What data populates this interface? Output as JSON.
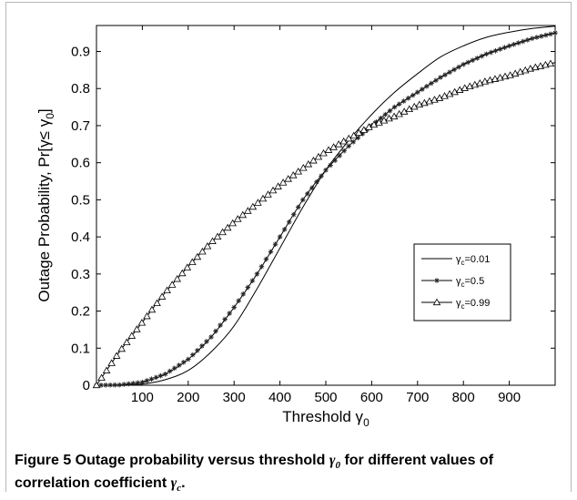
{
  "chart_data": {
    "type": "line",
    "xlabel": "Threshold γ",
    "xlabel_sub": "0",
    "ylabel": "Outage Probability, Pr[γ≤ γ",
    "ylabel_sub": "0",
    "ylabel_end": "]",
    "xlim": [
      0,
      1000
    ],
    "ylim": [
      0,
      0.97
    ],
    "xticks": [
      100,
      200,
      300,
      400,
      500,
      600,
      700,
      800,
      900
    ],
    "xtick_labels": [
      "100",
      "200",
      "300",
      "400",
      "500",
      "600",
      "700",
      "800",
      "900"
    ],
    "yticks": [
      0,
      0.1,
      0.2,
      0.3,
      0.4,
      0.5,
      0.6,
      0.7,
      0.8,
      0.9
    ],
    "ytick_labels": [
      "0",
      "0.1",
      "0.2",
      "0.3",
      "0.4",
      "0.5",
      "0.6",
      "0.7",
      "0.8",
      "0.9"
    ],
    "grid": false,
    "legend_position": "right",
    "series": [
      {
        "name": "γc=0.01",
        "label_base": "γ",
        "label_sub": "c",
        "label_rest": "=0.01",
        "marker": "none",
        "x": [
          0,
          50,
          100,
          150,
          200,
          250,
          300,
          350,
          400,
          450,
          500,
          550,
          600,
          650,
          700,
          750,
          800,
          850,
          900,
          950,
          1000
        ],
        "y": [
          0,
          0.0,
          0.003,
          0.015,
          0.04,
          0.09,
          0.16,
          0.26,
          0.37,
          0.48,
          0.58,
          0.66,
          0.73,
          0.79,
          0.84,
          0.885,
          0.915,
          0.938,
          0.952,
          0.962,
          0.968
        ]
      },
      {
        "name": "γc=0.5",
        "label_base": "γ",
        "label_sub": "c",
        "label_rest": "=0.5",
        "marker": "star",
        "x": [
          0,
          50,
          100,
          150,
          200,
          250,
          300,
          350,
          400,
          450,
          500,
          550,
          600,
          650,
          700,
          750,
          800,
          850,
          900,
          950,
          1000
        ],
        "y": [
          0,
          0.001,
          0.008,
          0.03,
          0.07,
          0.13,
          0.21,
          0.3,
          0.4,
          0.5,
          0.58,
          0.645,
          0.7,
          0.75,
          0.79,
          0.83,
          0.865,
          0.893,
          0.915,
          0.935,
          0.95
        ]
      },
      {
        "name": "γc=0.99",
        "label_base": "γ",
        "label_sub": "c",
        "label_rest": "=0.99",
        "marker": "triangle",
        "x": [
          0,
          50,
          100,
          150,
          200,
          250,
          300,
          350,
          400,
          450,
          500,
          550,
          600,
          650,
          700,
          750,
          800,
          850,
          900,
          950,
          1000
        ],
        "y": [
          0,
          0.09,
          0.17,
          0.25,
          0.32,
          0.385,
          0.44,
          0.49,
          0.54,
          0.585,
          0.63,
          0.665,
          0.7,
          0.725,
          0.755,
          0.775,
          0.8,
          0.82,
          0.835,
          0.855,
          0.87
        ]
      }
    ]
  },
  "caption": {
    "lead": "Figure 5",
    "text_a": " Outage probability versus threshold ",
    "math_1": "γ",
    "math_1_sub": "0",
    "text_b": " for different values of correlation coefficient ",
    "math_2": "γ",
    "math_2_sub": "c",
    "text_c": "."
  }
}
